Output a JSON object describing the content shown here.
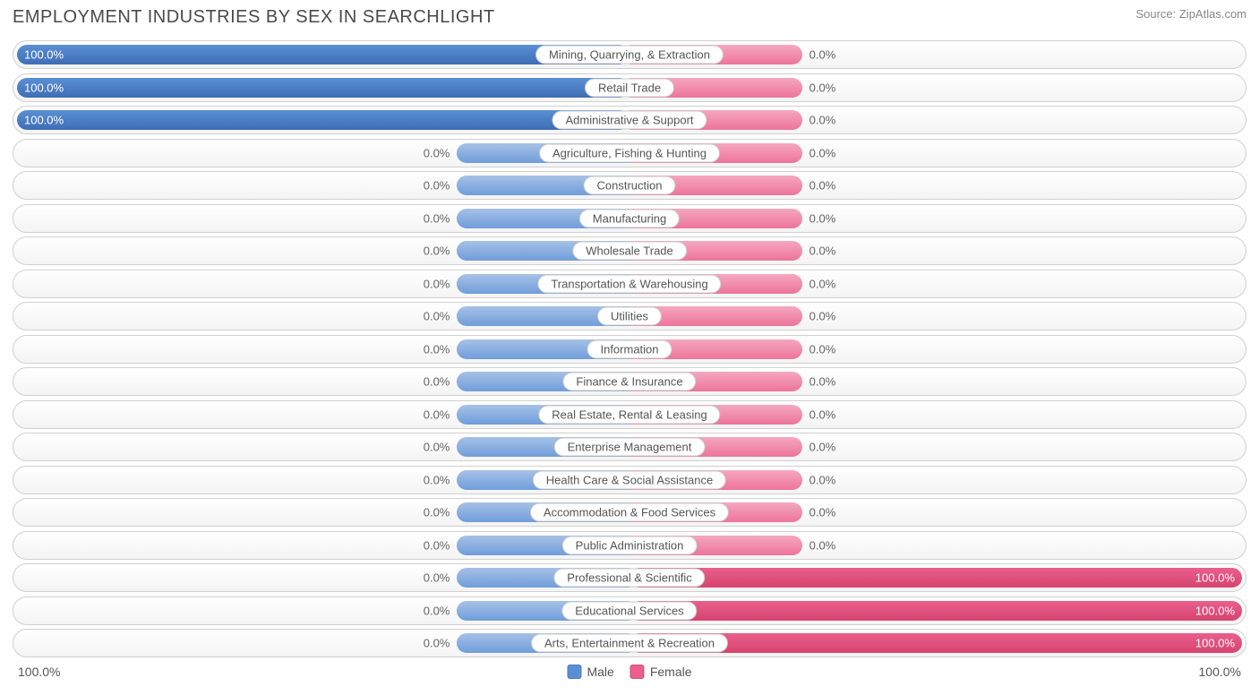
{
  "title": "EMPLOYMENT INDUSTRIES BY SEX IN SEARCHLIGHT",
  "source": "Source: ZipAtlas.com",
  "colors": {
    "male_full": "#5a8fd6",
    "male_border": "#3f6db3",
    "male_stub": "#a6c1e6",
    "female_full": "#ea5f8d",
    "female_border": "#d6446f",
    "female_stub": "#f5a7c0",
    "row_border": "#d0d0d0",
    "label_on_bar": "#ffffff",
    "label_off_bar": "#666666"
  },
  "chart": {
    "type": "diverging-bar",
    "stub_width_pct": 28,
    "axis_left": "100.0%",
    "axis_right": "100.0%",
    "legend": [
      {
        "label": "Male",
        "color": "#5a8fd6"
      },
      {
        "label": "Female",
        "color": "#ea5f8d"
      }
    ],
    "rows": [
      {
        "category": "Mining, Quarrying, & Extraction",
        "male": 100.0,
        "female": 0.0
      },
      {
        "category": "Retail Trade",
        "male": 100.0,
        "female": 0.0
      },
      {
        "category": "Administrative & Support",
        "male": 100.0,
        "female": 0.0
      },
      {
        "category": "Agriculture, Fishing & Hunting",
        "male": 0.0,
        "female": 0.0
      },
      {
        "category": "Construction",
        "male": 0.0,
        "female": 0.0
      },
      {
        "category": "Manufacturing",
        "male": 0.0,
        "female": 0.0
      },
      {
        "category": "Wholesale Trade",
        "male": 0.0,
        "female": 0.0
      },
      {
        "category": "Transportation & Warehousing",
        "male": 0.0,
        "female": 0.0
      },
      {
        "category": "Utilities",
        "male": 0.0,
        "female": 0.0
      },
      {
        "category": "Information",
        "male": 0.0,
        "female": 0.0
      },
      {
        "category": "Finance & Insurance",
        "male": 0.0,
        "female": 0.0
      },
      {
        "category": "Real Estate, Rental & Leasing",
        "male": 0.0,
        "female": 0.0
      },
      {
        "category": "Enterprise Management",
        "male": 0.0,
        "female": 0.0
      },
      {
        "category": "Health Care & Social Assistance",
        "male": 0.0,
        "female": 0.0
      },
      {
        "category": "Accommodation & Food Services",
        "male": 0.0,
        "female": 0.0
      },
      {
        "category": "Public Administration",
        "male": 0.0,
        "female": 0.0
      },
      {
        "category": "Professional & Scientific",
        "male": 0.0,
        "female": 100.0
      },
      {
        "category": "Educational Services",
        "male": 0.0,
        "female": 100.0
      },
      {
        "category": "Arts, Entertainment & Recreation",
        "male": 0.0,
        "female": 100.0
      }
    ]
  }
}
